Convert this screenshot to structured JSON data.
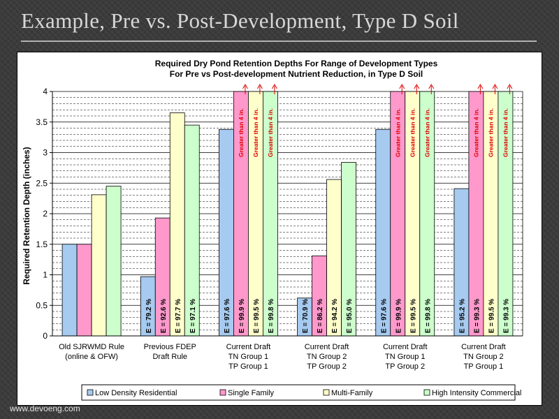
{
  "slide": {
    "title": "Example, Pre vs. Post-Development, Type D Soil",
    "footer": "www.devoeng.com"
  },
  "chart_data": {
    "type": "bar",
    "title_line1": "Required Dry Pond Retention Depths For Range of Development Types",
    "title_line2": "For Pre vs Post-development Nutrient Reduction, in Type D Soil",
    "ylabel": "Required Retention Depth (inches)",
    "xlabel": "",
    "ylim": [
      0,
      4
    ],
    "yticks": [
      "0",
      "0.5",
      "1",
      "1.5",
      "2",
      "2.5",
      "3",
      "3.5",
      "4"
    ],
    "categories": [
      [
        "Old SJRWMD Rule",
        "(online & OFW)"
      ],
      [
        "Previous FDEP",
        "Draft Rule"
      ],
      [
        "Current Draft",
        "TN Group 1",
        "TP Group 1"
      ],
      [
        "Current Draft",
        "TN Group 2",
        "TP Group 2"
      ],
      [
        "Current Draft",
        "TN Group 1",
        "TP Group 2"
      ],
      [
        "Current Draft",
        "TN Group 2",
        "TP Group 1"
      ]
    ],
    "series": [
      {
        "name": "Low Density Residential",
        "color": "#a6caf0",
        "values": [
          1.5,
          0.97,
          3.38,
          0.62,
          3.38,
          2.41
        ],
        "labels": [
          "",
          "E = 79.2 %",
          "E = 97.6 %",
          "E = 70.9 %",
          "E = 97.6 %",
          "E = 95.2 %"
        ]
      },
      {
        "name": "Single Family",
        "color": "#ff99cc",
        "values": [
          1.5,
          1.93,
          4,
          1.31,
          4,
          4
        ],
        "labels": [
          "",
          "E = 92.6 %",
          "E = 99.9 %",
          "E = 86.2 %",
          "E = 99.9 %",
          "E = 99.3 %"
        ]
      },
      {
        "name": "Multi-Family",
        "color": "#ffffcc",
        "values": [
          2.31,
          3.65,
          4,
          2.56,
          4,
          4
        ],
        "labels": [
          "",
          "E = 97.7 %",
          "E = 99.5 %",
          "E = 94.2 %",
          "E = 99.5 %",
          "E = 99.5 %"
        ]
      },
      {
        "name": "High Intensity Commercial",
        "color": "#ccffcc",
        "values": [
          2.45,
          3.45,
          4,
          2.84,
          4,
          4
        ],
        "labels": [
          "",
          "E = 97.1 %",
          "E = 99.8 %",
          "E = 95.0 %",
          "E = 99.8 %",
          "E = 99.3 %"
        ]
      }
    ],
    "over_limit_label": "Greater than 4 in."
  }
}
